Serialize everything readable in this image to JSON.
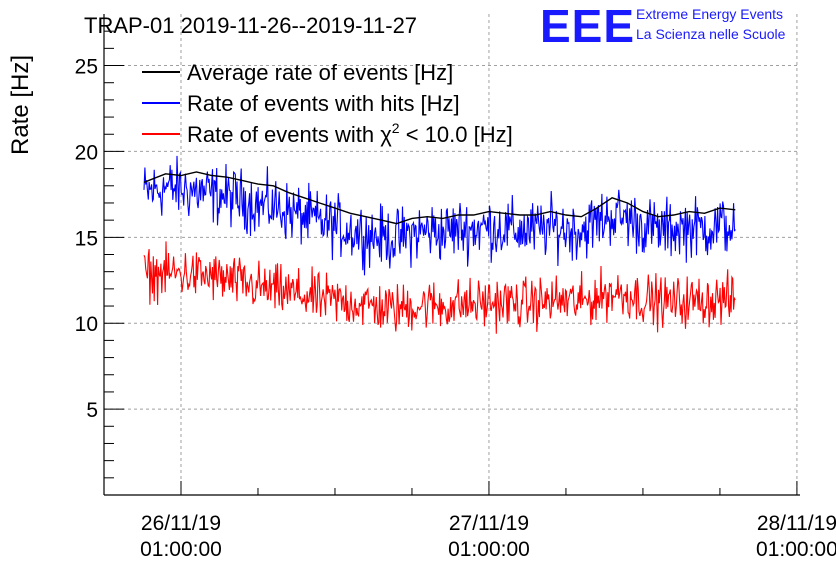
{
  "chart_data": {
    "type": "line",
    "title": "TRAP-01 2019-11-26--2019-11-27",
    "xlabel": "",
    "ylabel": "Rate [Hz]",
    "ylim": [
      0,
      28
    ],
    "xlim": [
      -0.25,
      2.01
    ],
    "x_unit": "days since 26/11/19 01:00:00",
    "y_ticks": [
      5,
      10,
      15,
      20,
      25
    ],
    "y_tick_labels": [
      "5",
      "10",
      "15",
      "20",
      "25"
    ],
    "x_ticks": [
      0,
      1,
      2
    ],
    "x_tick_labels": [
      {
        "date": "26/11/19",
        "time": "01:00:00"
      },
      {
        "date": "27/11/19",
        "time": "01:00:00"
      },
      {
        "date": "28/11/19",
        "time": "01:00:00"
      }
    ],
    "grid": true,
    "legend_position": "top-left",
    "series": [
      {
        "name": "Average rate of events [Hz]",
        "color": "#000000",
        "noise": 0,
        "x": [
          -0.12,
          -0.05,
          0.0,
          0.05,
          0.1,
          0.15,
          0.2,
          0.25,
          0.3,
          0.35,
          0.4,
          0.45,
          0.5,
          0.55,
          0.6,
          0.65,
          0.7,
          0.75,
          0.8,
          0.85,
          0.9,
          0.95,
          1.0,
          1.05,
          1.1,
          1.15,
          1.2,
          1.25,
          1.3,
          1.35,
          1.4,
          1.45,
          1.5,
          1.55,
          1.6,
          1.65,
          1.7,
          1.75,
          1.8
        ],
        "values": [
          18.2,
          18.7,
          18.6,
          18.8,
          18.6,
          18.5,
          18.3,
          18.1,
          18.0,
          17.6,
          17.3,
          17.0,
          16.7,
          16.4,
          16.2,
          16.0,
          15.8,
          16.1,
          16.2,
          16.1,
          16.3,
          16.3,
          16.5,
          16.4,
          16.3,
          16.3,
          16.5,
          16.3,
          16.2,
          16.7,
          17.3,
          17.0,
          16.5,
          16.2,
          16.3,
          16.5,
          16.4,
          16.7,
          16.6
        ]
      },
      {
        "name": "Rate of events with hits [Hz]",
        "color": "#0000ff",
        "noise": 1.9,
        "x": [
          -0.12,
          -0.05,
          0.0,
          0.05,
          0.1,
          0.15,
          0.2,
          0.25,
          0.3,
          0.35,
          0.4,
          0.45,
          0.5,
          0.55,
          0.6,
          0.65,
          0.7,
          0.75,
          0.8,
          0.85,
          0.9,
          0.95,
          1.0,
          1.05,
          1.1,
          1.15,
          1.2,
          1.25,
          1.3,
          1.35,
          1.4,
          1.45,
          1.5,
          1.55,
          1.6,
          1.65,
          1.7,
          1.75,
          1.8
        ],
        "values": [
          17.6,
          17.9,
          17.8,
          17.7,
          17.5,
          17.4,
          17.2,
          16.9,
          16.8,
          16.5,
          16.2,
          15.9,
          15.7,
          15.4,
          15.2,
          15.0,
          14.9,
          15.2,
          15.4,
          15.3,
          15.5,
          15.5,
          15.6,
          15.5,
          15.4,
          15.4,
          15.6,
          15.5,
          15.4,
          15.9,
          16.3,
          16.1,
          15.7,
          15.4,
          15.5,
          15.6,
          15.5,
          15.7,
          15.6
        ]
      },
      {
        "name": "Rate of events with χ² < 10.0 [Hz]",
        "color": "#ff0000",
        "noise": 1.6,
        "x": [
          -0.12,
          -0.05,
          0.0,
          0.05,
          0.1,
          0.15,
          0.2,
          0.25,
          0.3,
          0.35,
          0.4,
          0.45,
          0.5,
          0.55,
          0.6,
          0.65,
          0.7,
          0.75,
          0.8,
          0.85,
          0.9,
          0.95,
          1.0,
          1.05,
          1.1,
          1.15,
          1.2,
          1.25,
          1.3,
          1.35,
          1.4,
          1.45,
          1.5,
          1.55,
          1.6,
          1.65,
          1.7,
          1.75,
          1.8
        ],
        "values": [
          12.8,
          12.9,
          12.9,
          12.8,
          12.7,
          12.5,
          12.3,
          12.1,
          11.9,
          11.8,
          11.6,
          11.4,
          11.3,
          11.2,
          11.1,
          10.9,
          10.8,
          11.0,
          11.1,
          11.0,
          11.1,
          11.1,
          11.2,
          11.2,
          11.1,
          11.2,
          11.3,
          11.3,
          11.2,
          11.5,
          11.8,
          11.7,
          11.4,
          11.3,
          11.2,
          11.3,
          11.3,
          11.4,
          11.3
        ]
      }
    ],
    "legend": [
      {
        "label": "Average rate of events [Hz]",
        "color": "#000000"
      },
      {
        "label": "Rate of events with hits [Hz]",
        "color": "#0000ff"
      },
      {
        "label_prefix": "Rate of events with ",
        "label_chi": "χ",
        "label_sup": "2",
        "label_suffix": " < 10.0 [Hz]",
        "color": "#ff0000"
      }
    ]
  },
  "logo": {
    "mark": "EEE",
    "line1": "Extreme Energy Events",
    "line2": "La Scienza nelle Scuole",
    "color": "#1a1aff"
  }
}
